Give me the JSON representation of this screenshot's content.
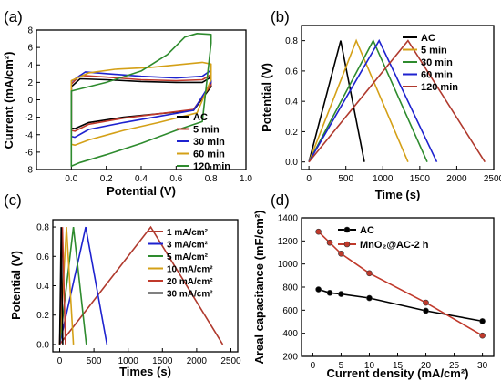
{
  "chart_data": [
    {
      "panel": "(a)",
      "type": "line",
      "xlabel": "Potential (V)",
      "ylabel": "Current (mA/cm²)",
      "xlim": [
        -0.2,
        1.0
      ],
      "ylim": [
        -8,
        8
      ],
      "xticks": [
        "0.0",
        "0.2",
        "0.4",
        "0.6",
        "0.8",
        "1.0"
      ],
      "yticks": [
        "-8",
        "-6",
        "-4",
        "-2",
        "0",
        "2",
        "4",
        "6",
        "8"
      ],
      "legend_position": "bottom-right",
      "series": [
        {
          "name": "AC",
          "color": "#000000",
          "upper": [
            [
              0.0,
              1.5
            ],
            [
              0.05,
              2.4
            ],
            [
              0.2,
              2.3
            ],
            [
              0.4,
              2.1
            ],
            [
              0.6,
              2.0
            ],
            [
              0.75,
              2.0
            ],
            [
              0.8,
              2.6
            ]
          ],
          "lower": [
            [
              0.8,
              1.5
            ],
            [
              0.7,
              -1.2
            ],
            [
              0.5,
              -1.6
            ],
            [
              0.3,
              -2.0
            ],
            [
              0.1,
              -2.6
            ],
            [
              0.02,
              -3.3
            ],
            [
              0.0,
              -3.2
            ]
          ]
        },
        {
          "name": "5 min",
          "color": "#c0392b",
          "upper": [
            [
              0.0,
              1.8
            ],
            [
              0.05,
              2.8
            ],
            [
              0.2,
              2.6
            ],
            [
              0.4,
              2.3
            ],
            [
              0.6,
              2.2
            ],
            [
              0.75,
              2.3
            ],
            [
              0.8,
              2.9
            ]
          ],
          "lower": [
            [
              0.8,
              1.7
            ],
            [
              0.7,
              -1.1
            ],
            [
              0.5,
              -1.6
            ],
            [
              0.3,
              -2.1
            ],
            [
              0.1,
              -2.8
            ],
            [
              0.02,
              -3.6
            ],
            [
              0.0,
              -3.5
            ]
          ]
        },
        {
          "name": "30 min",
          "color": "#1e22cf",
          "upper": [
            [
              0.0,
              2.1
            ],
            [
              0.08,
              3.2
            ],
            [
              0.2,
              3.0
            ],
            [
              0.4,
              2.7
            ],
            [
              0.6,
              2.5
            ],
            [
              0.75,
              2.7
            ],
            [
              0.8,
              3.4
            ]
          ],
          "lower": [
            [
              0.8,
              2.0
            ],
            [
              0.7,
              -1.2
            ],
            [
              0.5,
              -1.9
            ],
            [
              0.3,
              -2.6
            ],
            [
              0.1,
              -3.4
            ],
            [
              0.02,
              -4.3
            ],
            [
              0.0,
              -4.2
            ]
          ]
        },
        {
          "name": "60 min",
          "color": "#d4a017",
          "upper": [
            [
              0.0,
              2.2
            ],
            [
              0.1,
              3.1
            ],
            [
              0.25,
              3.5
            ],
            [
              0.45,
              3.7
            ],
            [
              0.65,
              4.1
            ],
            [
              0.75,
              4.3
            ],
            [
              0.8,
              4.1
            ]
          ],
          "lower": [
            [
              0.8,
              2.3
            ],
            [
              0.72,
              -1.5
            ],
            [
              0.5,
              -2.6
            ],
            [
              0.3,
              -3.5
            ],
            [
              0.1,
              -4.6
            ],
            [
              0.02,
              -5.2
            ],
            [
              0.0,
              -5.1
            ]
          ]
        },
        {
          "name": "120 min",
          "color": "#2e8b2e",
          "upper": [
            [
              0.0,
              1.0
            ],
            [
              0.2,
              2.0
            ],
            [
              0.4,
              3.3
            ],
            [
              0.55,
              5.2
            ],
            [
              0.65,
              7.2
            ],
            [
              0.72,
              7.6
            ],
            [
              0.8,
              7.5
            ]
          ],
          "lower": [
            [
              0.8,
              6.5
            ],
            [
              0.75,
              -2.5
            ],
            [
              0.6,
              -3.5
            ],
            [
              0.4,
              -5.0
            ],
            [
              0.2,
              -6.3
            ],
            [
              0.05,
              -7.2
            ],
            [
              0.0,
              -7.6
            ]
          ]
        }
      ]
    },
    {
      "panel": "(b)",
      "type": "line",
      "xlabel": "Time (s)",
      "ylabel": "Potential (V)",
      "xlim": [
        -100,
        2500
      ],
      "ylim": [
        -0.05,
        0.9
      ],
      "xticks": [
        "0",
        "500",
        "1000",
        "1500",
        "2000",
        "2500"
      ],
      "yticks": [
        "0.0",
        "0.2",
        "0.4",
        "0.6",
        "0.8"
      ],
      "legend_position": "top-right",
      "series": [
        {
          "name": "AC",
          "color": "#000000",
          "points": [
            [
              0,
              0
            ],
            [
              430,
              0.8
            ],
            [
              750,
              0
            ]
          ]
        },
        {
          "name": "5 min",
          "color": "#d4a017",
          "points": [
            [
              0,
              0
            ],
            [
              640,
              0.8
            ],
            [
              1340,
              0
            ]
          ]
        },
        {
          "name": "30 min",
          "color": "#2e8b2e",
          "points": [
            [
              0,
              0
            ],
            [
              870,
              0.8
            ],
            [
              1600,
              0
            ]
          ]
        },
        {
          "name": "60 min",
          "color": "#1e22cf",
          "points": [
            [
              0,
              0
            ],
            [
              950,
              0.8
            ],
            [
              1730,
              0
            ]
          ]
        },
        {
          "name": "120 min",
          "color": "#b03a2e",
          "points": [
            [
              0,
              0
            ],
            [
              1340,
              0.8
            ],
            [
              2380,
              0
            ]
          ]
        }
      ]
    },
    {
      "panel": "(c)",
      "type": "line",
      "xlabel": "Times (s)",
      "ylabel": "Potential (V)",
      "xlim": [
        -100,
        2600
      ],
      "ylim": [
        -0.05,
        0.85
      ],
      "xticks": [
        "0",
        "500",
        "1000",
        "1500",
        "2000",
        "2500"
      ],
      "yticks": [
        "0.0",
        "0.2",
        "0.4",
        "0.6",
        "0.8"
      ],
      "legend_position": "top-right",
      "series": [
        {
          "name": "1 mA/cm²",
          "color": "#b03a2e",
          "points": [
            [
              0,
              0
            ],
            [
              1330,
              0.8
            ],
            [
              2380,
              0
            ]
          ]
        },
        {
          "name": "3 mA/cm²",
          "color": "#1e22cf",
          "points": [
            [
              0,
              0
            ],
            [
              380,
              0.8
            ],
            [
              690,
              0
            ]
          ]
        },
        {
          "name": "5 mA/cm²",
          "color": "#2e8b2e",
          "points": [
            [
              0,
              0
            ],
            [
              200,
              0.8
            ],
            [
              390,
              0
            ]
          ]
        },
        {
          "name": "10 mA/cm²",
          "color": "#d4a017",
          "points": [
            [
              0,
              0
            ],
            [
              100,
              0.8
            ],
            [
              200,
              0
            ]
          ]
        },
        {
          "name": "20 mA/cm²",
          "color": "#c0392b",
          "points": [
            [
              0,
              0
            ],
            [
              40,
              0.8
            ],
            [
              85,
              0
            ]
          ]
        },
        {
          "name": "30 mA/cm²",
          "color": "#000000",
          "points": [
            [
              0,
              0
            ],
            [
              22,
              0.8
            ],
            [
              45,
              0
            ]
          ]
        }
      ]
    },
    {
      "panel": "(d)",
      "type": "line",
      "xlabel": "Current density (mA/cm²)",
      "ylabel": "Areal capacitance (mF/cm²)",
      "xlim": [
        -2,
        32
      ],
      "ylim": [
        200,
        1400
      ],
      "xticks": [
        "0",
        "5",
        "10",
        "15",
        "20",
        "25",
        "30"
      ],
      "yticks": [
        "200",
        "400",
        "600",
        "800",
        "1000",
        "1200",
        "1400"
      ],
      "legend_position": "top-right",
      "series": [
        {
          "name": "AC",
          "color": "#000000",
          "marker_fill": "#000000",
          "x": [
            1,
            3,
            5,
            10,
            20,
            30
          ],
          "y": [
            780,
            750,
            740,
            705,
            595,
            505
          ]
        },
        {
          "name": "MnO₂@AC-2 h",
          "color": "#c0392b",
          "marker_fill": "#c0392b",
          "x": [
            1,
            3,
            5,
            10,
            20,
            30
          ],
          "y": [
            1280,
            1185,
            1090,
            920,
            665,
            380
          ]
        }
      ]
    }
  ]
}
